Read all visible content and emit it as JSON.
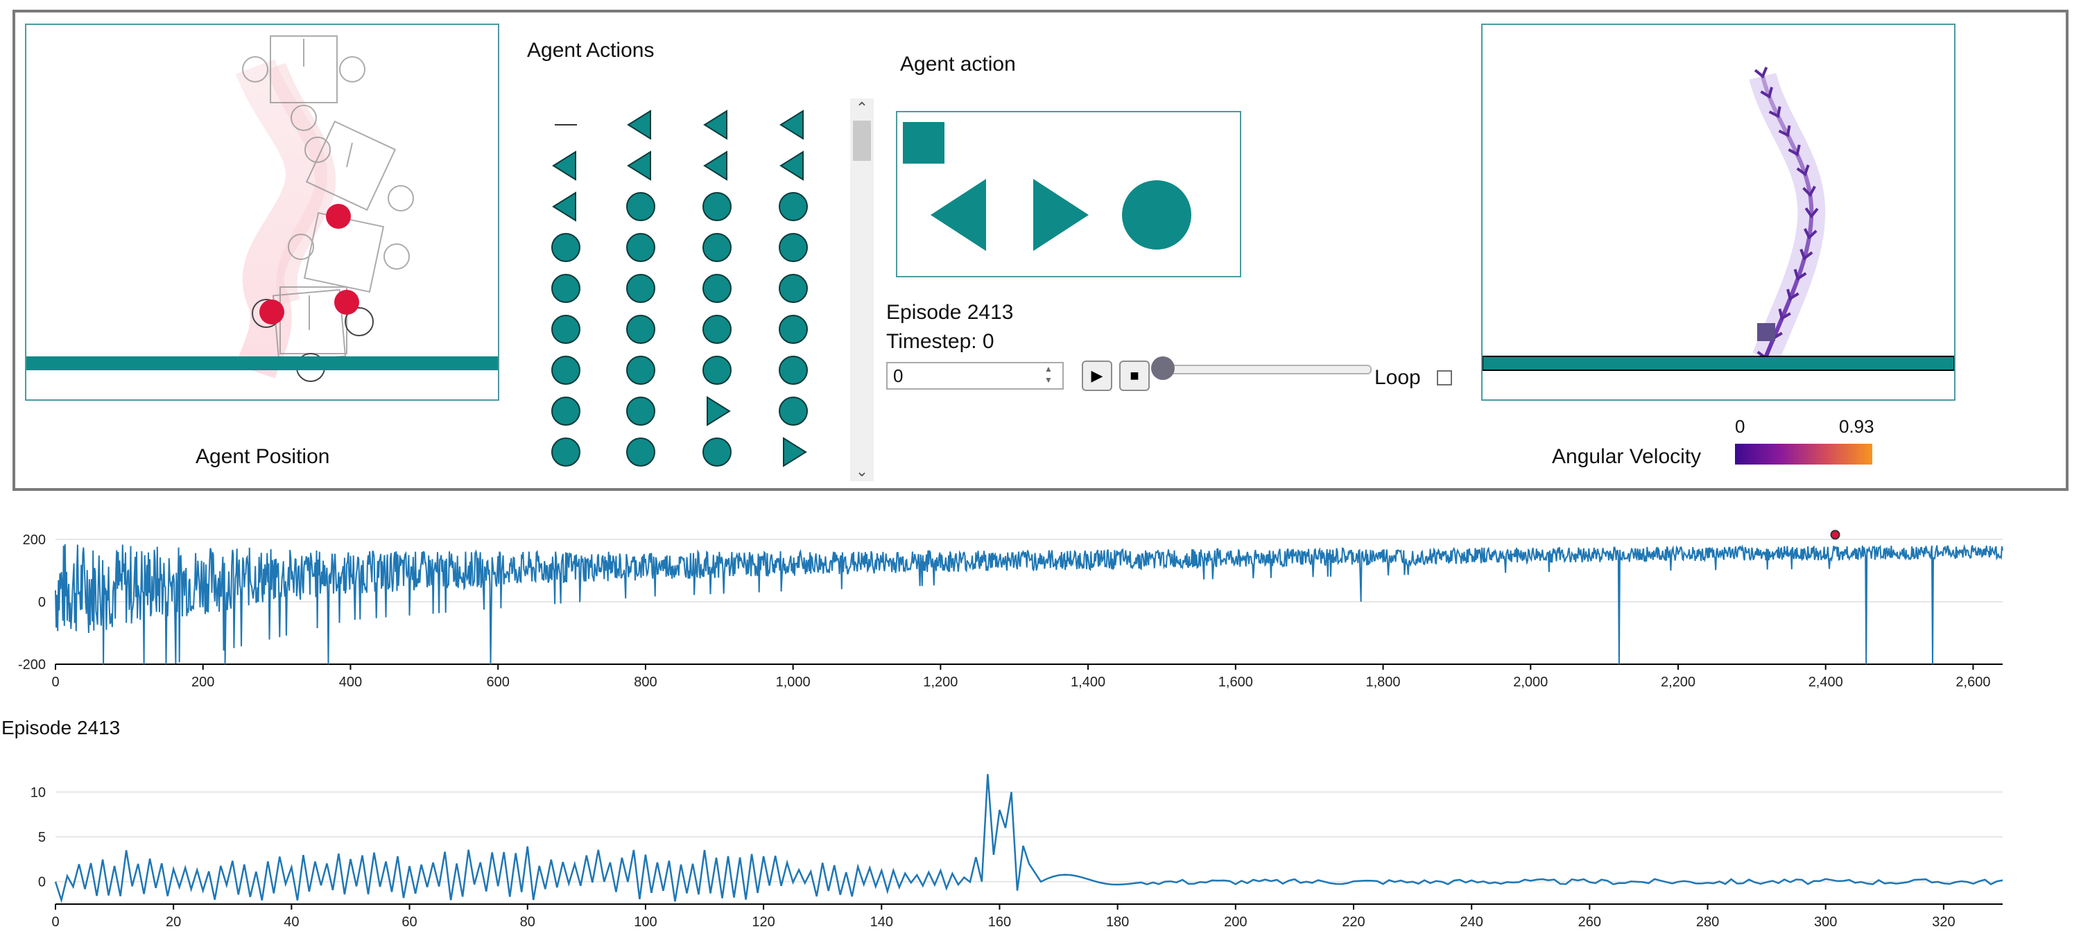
{
  "top_panel": {
    "agent_position_label": "Agent Position",
    "agent_actions_label": "Agent Actions",
    "agent_action_label": "Agent action",
    "episode_label": "Episode 2413",
    "timestep_label": "Timestep: 0",
    "timestep_value": "0",
    "loop_label": "Loop",
    "loop_checked": false,
    "play_icon": "play-icon",
    "stop_icon": "stop-icon",
    "angular_velocity_label": "Angular Velocity",
    "colorbar_min": "0",
    "colorbar_max": "0.93",
    "colorbar_colors": [
      "#3d0a91",
      "#8b1a9b",
      "#d44c5c",
      "#f79420"
    ]
  },
  "action_legend": [
    "square-icon",
    "triangle-left-icon",
    "triangle-right-icon",
    "circle-icon"
  ],
  "action_grid": [
    [
      "dash",
      "triangle-left",
      "triangle-left",
      "triangle-left"
    ],
    [
      "triangle-left",
      "triangle-left",
      "triangle-left",
      "triangle-left"
    ],
    [
      "triangle-left",
      "circle",
      "circle",
      "circle"
    ],
    [
      "circle",
      "circle",
      "circle",
      "circle"
    ],
    [
      "circle",
      "circle",
      "circle",
      "circle"
    ],
    [
      "circle",
      "circle",
      "circle",
      "circle"
    ],
    [
      "circle",
      "circle",
      "circle",
      "circle"
    ],
    [
      "circle",
      "circle",
      "triangle-right",
      "circle"
    ],
    [
      "circle",
      "circle",
      "circle",
      "triangle-right"
    ]
  ],
  "colors": {
    "teal": "#0e8a88",
    "panel_border": "#4d9aa0",
    "line": "#1f77b4",
    "red": "#dc143c"
  },
  "chart_data": [
    {
      "type": "line",
      "title": "",
      "xlabel": "",
      "ylabel": "",
      "xlim": [
        0,
        2640
      ],
      "ylim": [
        -200,
        200
      ],
      "xticks": [
        "0",
        "200",
        "400",
        "600",
        "800",
        "1,000",
        "1,200",
        "1,400",
        "1,600",
        "1,800",
        "2,000",
        "2,200",
        "2,400",
        "2,600"
      ],
      "xtick_values": [
        0,
        200,
        400,
        600,
        800,
        1000,
        1200,
        1400,
        1600,
        1800,
        2000,
        2200,
        2400,
        2600
      ],
      "yticks": [
        "-200",
        "0",
        "200"
      ],
      "ytick_values": [
        -200,
        0,
        200
      ],
      "grid": true,
      "highlight_point": {
        "x": 2413,
        "y": 215
      },
      "series_trend": [
        {
          "x": 0,
          "mean": 40,
          "spread": 160
        },
        {
          "x": 200,
          "mean": 70,
          "spread": 110
        },
        {
          "x": 400,
          "mean": 95,
          "spread": 70
        },
        {
          "x": 800,
          "mean": 115,
          "spread": 45
        },
        {
          "x": 1200,
          "mean": 130,
          "spread": 35
        },
        {
          "x": 1600,
          "mean": 140,
          "spread": 30
        },
        {
          "x": 2000,
          "mean": 150,
          "spread": 25
        },
        {
          "x": 2640,
          "mean": 160,
          "spread": 22
        }
      ],
      "dips": [
        {
          "x": 120,
          "y": -200
        },
        {
          "x": 150,
          "y": -200
        },
        {
          "x": 230,
          "y": -200
        },
        {
          "x": 370,
          "y": -200
        },
        {
          "x": 590,
          "y": -200
        },
        {
          "x": 990,
          "y": 90
        },
        {
          "x": 1770,
          "y": 0
        },
        {
          "x": 2120,
          "y": -200
        },
        {
          "x": 2455,
          "y": -200
        },
        {
          "x": 2545,
          "y": -200
        }
      ]
    },
    {
      "type": "line",
      "title": "Episode 2413",
      "xlabel": "",
      "ylabel": "",
      "xlim": [
        0,
        330
      ],
      "ylim": [
        -2.5,
        12.5
      ],
      "xticks": [
        "0",
        "20",
        "40",
        "60",
        "80",
        "100",
        "120",
        "140",
        "160",
        "180",
        "200",
        "220",
        "240",
        "260",
        "280",
        "300",
        "320"
      ],
      "xtick_values": [
        0,
        20,
        40,
        60,
        80,
        100,
        120,
        140,
        160,
        180,
        200,
        220,
        240,
        260,
        280,
        300,
        320
      ],
      "yticks": [
        "0",
        "5",
        "10"
      ],
      "ytick_values": [
        0,
        5,
        10
      ],
      "grid": true,
      "keypoints": [
        {
          "x": 0,
          "y": 0
        },
        {
          "x": 9,
          "y": 4.5
        },
        {
          "x": 20,
          "y": 2
        },
        {
          "x": 40,
          "y": 3
        },
        {
          "x": 60,
          "y": 3.5
        },
        {
          "x": 80,
          "y": 4
        },
        {
          "x": 100,
          "y": 5
        },
        {
          "x": 120,
          "y": 3
        },
        {
          "x": 140,
          "y": 2
        },
        {
          "x": 155,
          "y": 1
        },
        {
          "x": 160,
          "y": 12
        },
        {
          "x": 163,
          "y": 6
        },
        {
          "x": 166,
          "y": 10
        },
        {
          "x": 170,
          "y": 0
        },
        {
          "x": 180,
          "y": 1
        },
        {
          "x": 190,
          "y": 0
        },
        {
          "x": 330,
          "y": 0
        }
      ]
    }
  ]
}
